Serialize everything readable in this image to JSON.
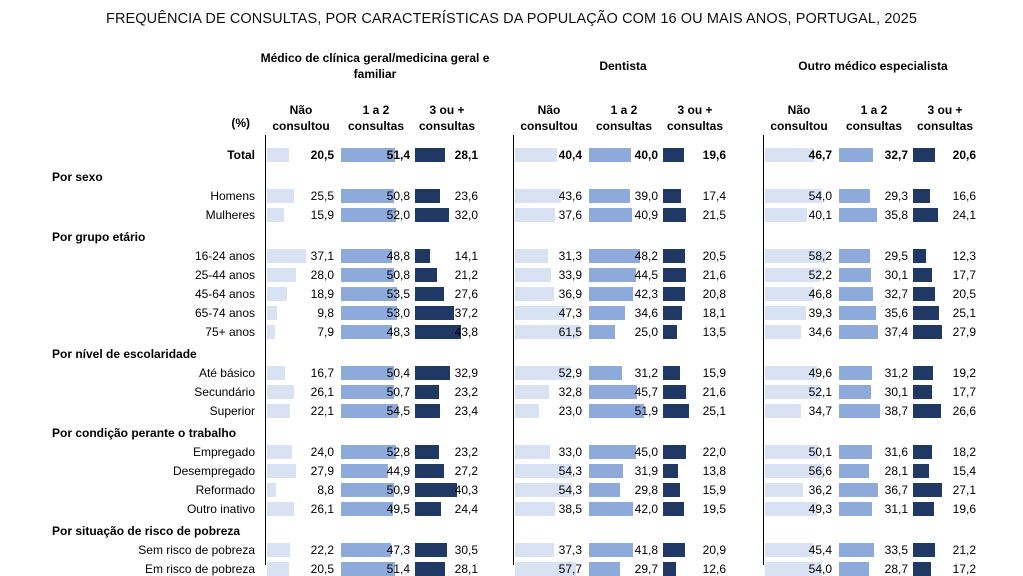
{
  "title": "FREQUÊNCIA DE CONSULTAS, POR CARACTERÍSTICAS DA POPULAÇÃO COM 16 OU MAIS ANOS, PORTUGAL, 2025",
  "unit_label": "(%)",
  "colors": {
    "bar_nao_consultou": "#D9E2F3",
    "bar_1_2_consultas": "#8EAADB",
    "bar_3_mais_consultas": "#1F3864",
    "separator_line": "#000000",
    "text": "#000000"
  },
  "chart_data": {
    "type": "bar",
    "orientation": "horizontal",
    "unit": "%",
    "title": "FREQUÊNCIA DE CONSULTAS, POR CARACTERÍSTICAS DA POPULAÇÃO COM 16 OU MAIS ANOS, PORTUGAL, 2025",
    "value_range": [
      0,
      100
    ],
    "grid": false,
    "legend": false,
    "column_groups": [
      {
        "title": "Médico de clínica geral/medicina geral e familiar",
        "columns": [
          "Não consultou",
          "1 a 2 consultas",
          "3 ou + consultas"
        ]
      },
      {
        "title": "Dentista",
        "columns": [
          "Não consultou",
          "1 a 2 consultas",
          "3 ou + consultas"
        ]
      },
      {
        "title": "Outro médico especialista",
        "columns": [
          "Não consultou",
          "1 a 2 consultas",
          "3 ou + consultas"
        ]
      }
    ],
    "rows": [
      {
        "type": "data",
        "label": "Total",
        "bold": true,
        "groups": [
          [
            "20,5",
            "51,4",
            "28,1"
          ],
          [
            "40,4",
            "40,0",
            "19,6"
          ],
          [
            "46,7",
            "32,7",
            "20,6"
          ]
        ]
      },
      {
        "type": "section",
        "label": "Por sexo"
      },
      {
        "type": "data",
        "label": "Homens",
        "groups": [
          [
            "25,5",
            "50,8",
            "23,6"
          ],
          [
            "43,6",
            "39,0",
            "17,4"
          ],
          [
            "54,0",
            "29,3",
            "16,6"
          ]
        ]
      },
      {
        "type": "data",
        "label": "Mulheres",
        "groups": [
          [
            "15,9",
            "52,0",
            "32,0"
          ],
          [
            "37,6",
            "40,9",
            "21,5"
          ],
          [
            "40,1",
            "35,8",
            "24,1"
          ]
        ]
      },
      {
        "type": "section",
        "label": "Por grupo etário"
      },
      {
        "type": "data",
        "label": "16-24 anos",
        "groups": [
          [
            "37,1",
            "48,8",
            "14,1"
          ],
          [
            "31,3",
            "48,2",
            "20,5"
          ],
          [
            "58,2",
            "29,5",
            "12,3"
          ]
        ]
      },
      {
        "type": "data",
        "label": "25-44 anos",
        "groups": [
          [
            "28,0",
            "50,8",
            "21,2"
          ],
          [
            "33,9",
            "44,5",
            "21,6"
          ],
          [
            "52,2",
            "30,1",
            "17,7"
          ]
        ]
      },
      {
        "type": "data",
        "label": "45-64 anos",
        "groups": [
          [
            "18,9",
            "53,5",
            "27,6"
          ],
          [
            "36,9",
            "42,3",
            "20,8"
          ],
          [
            "46,8",
            "32,7",
            "20,5"
          ]
        ]
      },
      {
        "type": "data",
        "label": "65-74 anos",
        "groups": [
          [
            "9,8",
            "53,0",
            "37,2"
          ],
          [
            "47,3",
            "34,6",
            "18,1"
          ],
          [
            "39,3",
            "35,6",
            "25,1"
          ]
        ]
      },
      {
        "type": "data",
        "label": "75+ anos",
        "groups": [
          [
            "7,9",
            "48,3",
            "43,8"
          ],
          [
            "61,5",
            "25,0",
            "13,5"
          ],
          [
            "34,6",
            "37,4",
            "27,9"
          ]
        ]
      },
      {
        "type": "section",
        "label": "Por nível de escolaridade"
      },
      {
        "type": "data",
        "label": "Até básico",
        "groups": [
          [
            "16,7",
            "50,4",
            "32,9"
          ],
          [
            "52,9",
            "31,2",
            "15,9"
          ],
          [
            "49,6",
            "31,2",
            "19,2"
          ]
        ]
      },
      {
        "type": "data",
        "label": "Secundário",
        "groups": [
          [
            "26,1",
            "50,7",
            "23,2"
          ],
          [
            "32,8",
            "45,7",
            "21,6"
          ],
          [
            "52,1",
            "30,1",
            "17,7"
          ]
        ]
      },
      {
        "type": "data",
        "label": "Superior",
        "groups": [
          [
            "22,1",
            "54,5",
            "23,4"
          ],
          [
            "23,0",
            "51,9",
            "25,1"
          ],
          [
            "34,7",
            "38,7",
            "26,6"
          ]
        ]
      },
      {
        "type": "section",
        "label": "Por condição perante o trabalho"
      },
      {
        "type": "data",
        "label": "Empregado",
        "groups": [
          [
            "24,0",
            "52,8",
            "23,2"
          ],
          [
            "33,0",
            "45,0",
            "22,0"
          ],
          [
            "50,1",
            "31,6",
            "18,2"
          ]
        ]
      },
      {
        "type": "data",
        "label": "Desempregado",
        "groups": [
          [
            "27,9",
            "44,9",
            "27,2"
          ],
          [
            "54,3",
            "31,9",
            "13,8"
          ],
          [
            "56,6",
            "28,1",
            "15,4"
          ]
        ]
      },
      {
        "type": "data",
        "label": "Reformado",
        "groups": [
          [
            "8,8",
            "50,9",
            "40,3"
          ],
          [
            "54,3",
            "29,8",
            "15,9"
          ],
          [
            "36,2",
            "36,7",
            "27,1"
          ]
        ]
      },
      {
        "type": "data",
        "label": "Outro inativo",
        "groups": [
          [
            "26,1",
            "49,5",
            "24,4"
          ],
          [
            "38,5",
            "42,0",
            "19,5"
          ],
          [
            "49,3",
            "31,1",
            "19,6"
          ]
        ]
      },
      {
        "type": "section",
        "label": "Por situação de risco de pobreza"
      },
      {
        "type": "data",
        "label": "Sem risco de pobreza",
        "groups": [
          [
            "22,2",
            "47,3",
            "30,5"
          ],
          [
            "37,3",
            "41,8",
            "20,9"
          ],
          [
            "45,4",
            "33,5",
            "21,2"
          ]
        ]
      },
      {
        "type": "data",
        "label": "Em risco de pobreza",
        "groups": [
          [
            "20,5",
            "51,4",
            "28,1"
          ],
          [
            "57,7",
            "29,7",
            "12,6"
          ],
          [
            "54,0",
            "28,7",
            "17,2"
          ]
        ]
      }
    ]
  }
}
